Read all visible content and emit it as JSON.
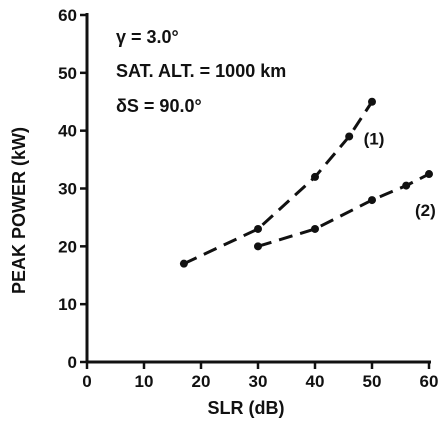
{
  "chart_data": {
    "type": "line",
    "title": "",
    "xlabel": "SLR (dB)",
    "ylabel": "PEAK POWER (kW)",
    "xlim": [
      0,
      60
    ],
    "ylim": [
      0,
      60
    ],
    "xticks": [
      0,
      10,
      20,
      30,
      40,
      50,
      60
    ],
    "yticks": [
      0,
      10,
      20,
      30,
      40,
      50,
      60
    ],
    "grid": false,
    "legend": "none",
    "annotations": [
      "γ = 3.0°",
      "SAT. ALT. = 1000 km",
      "δS = 90.0°"
    ],
    "series": [
      {
        "name": "(1)",
        "x": [
          17,
          30,
          40,
          46,
          50
        ],
        "y": [
          17,
          23,
          32,
          39,
          45
        ]
      },
      {
        "name": "(2)",
        "x": [
          30,
          40,
          50,
          56,
          60
        ],
        "y": [
          20,
          23,
          28,
          30.5,
          32.5
        ]
      }
    ],
    "colors": {
      "ink": "#111111",
      "background": "#ffffff"
    }
  }
}
